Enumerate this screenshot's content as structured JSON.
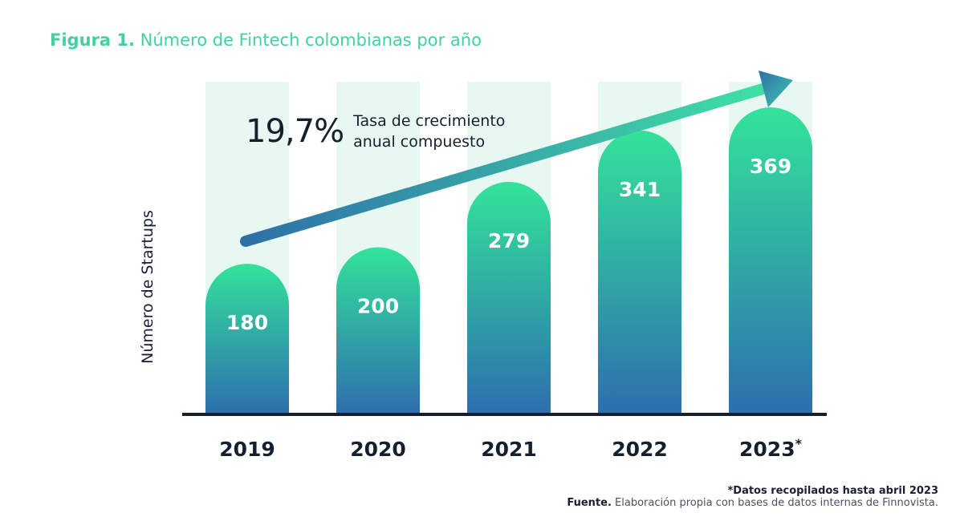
{
  "title": {
    "label": "Figura 1.",
    "text": "Número de Fintech colombianas por año"
  },
  "cagr": {
    "value": "19,7%",
    "label": "Tasa de crecimiento anual compuesto"
  },
  "footnote": {
    "note": "*Datos recopilados hasta abril 2023",
    "source_label": "Fuente.",
    "source_text": "Elaboración propia con bases de datos internas de Finnovista."
  },
  "colors": {
    "accent": "#3fd3a0",
    "bar_top": "#33e39a",
    "bar_bottom": "#2d6fae",
    "bar_bg": "#e6f8f1",
    "arrow_start": "#2f6fa8",
    "arrow_end": "#3fe0a6",
    "text": "#1a1f36"
  },
  "chart_data": {
    "type": "bar",
    "categories": [
      "2019",
      "2020",
      "2021",
      "2022",
      "2023*"
    ],
    "values": [
      180,
      200,
      279,
      341,
      369
    ],
    "data_labels": [
      "180",
      "200",
      "279",
      "341",
      "369"
    ],
    "xlabel": "",
    "ylabel": "Número de Startups",
    "ylim": [
      0,
      400
    ],
    "grid": false,
    "legend": "none"
  }
}
